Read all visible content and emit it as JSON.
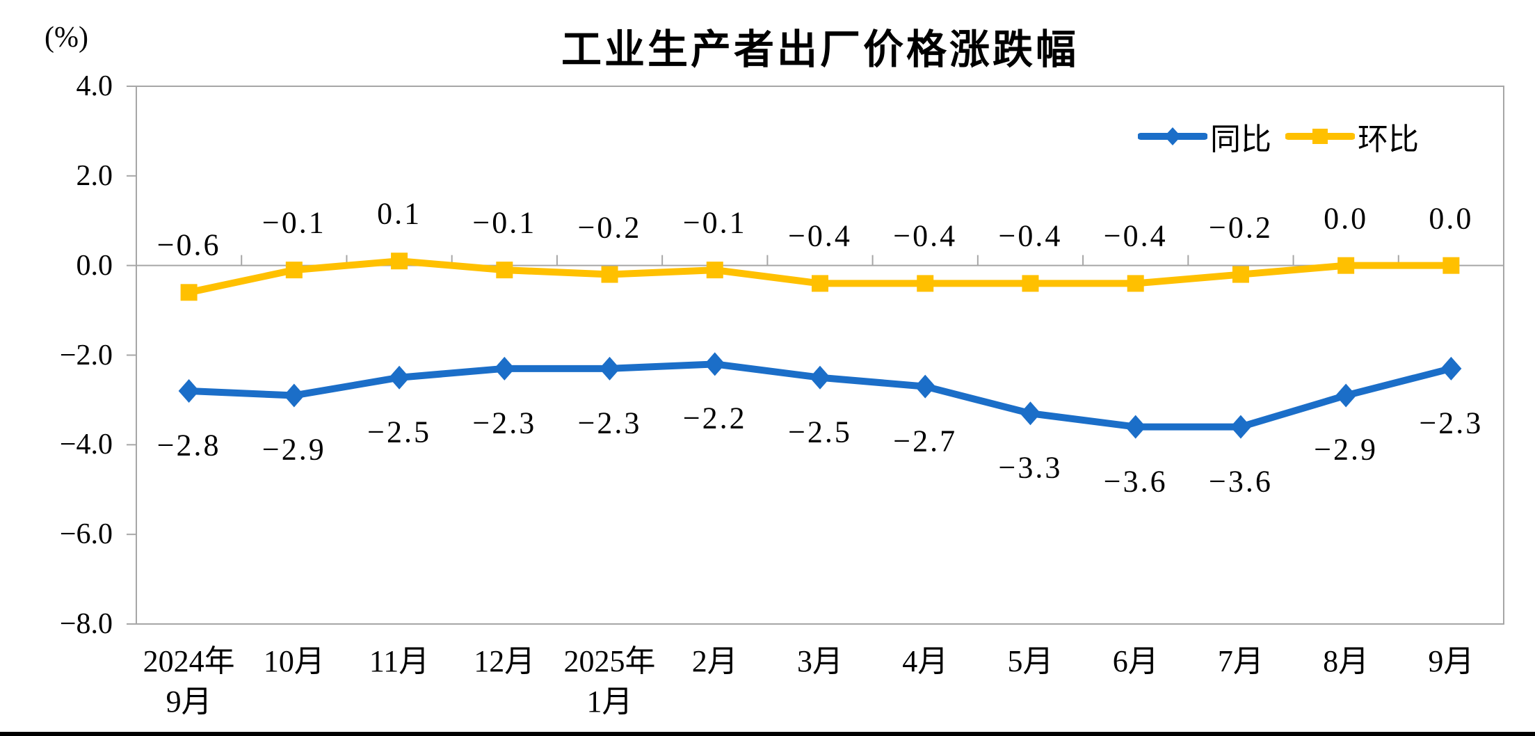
{
  "page": {
    "background": "#FFFFFF",
    "bottom_rule_color": "#000000"
  },
  "chart_data": {
    "type": "line",
    "title": "工业生产者出厂价格涨跌幅",
    "unit_label": "(%)",
    "categories": [
      [
        "2024年",
        "9月"
      ],
      [
        "10月"
      ],
      [
        "11月"
      ],
      [
        "12月"
      ],
      [
        "2025年",
        "1月"
      ],
      [
        "2月"
      ],
      [
        "3月"
      ],
      [
        "4月"
      ],
      [
        "5月"
      ],
      [
        "6月"
      ],
      [
        "7月"
      ],
      [
        "8月"
      ],
      [
        "9月"
      ]
    ],
    "series": [
      {
        "name": "同比",
        "color": "#1B6EC8",
        "marker": "diamond",
        "label_side": "below",
        "values": [
          -2.8,
          -2.9,
          -2.5,
          -2.3,
          -2.3,
          -2.2,
          -2.5,
          -2.7,
          -3.3,
          -3.6,
          -3.6,
          -2.9,
          -2.3
        ],
        "labels": [
          "−2.8",
          "−2.9",
          "−2.5",
          "−2.3",
          "−2.3",
          "−2.2",
          "−2.5",
          "−2.7",
          "−3.3",
          "−3.6",
          "−3.6",
          "−2.9",
          "−2.3"
        ]
      },
      {
        "name": "环比",
        "color": "#FFC000",
        "marker": "square",
        "label_side": "above",
        "values": [
          -0.6,
          -0.1,
          0.1,
          -0.1,
          -0.2,
          -0.1,
          -0.4,
          -0.4,
          -0.4,
          -0.4,
          -0.2,
          0.0,
          0.0
        ],
        "labels": [
          "−0.6",
          "−0.1",
          "0.1",
          "−0.1",
          "−0.2",
          "−0.1",
          "−0.4",
          "−0.4",
          "−0.4",
          "−0.4",
          "−0.2",
          "0.0",
          "0.0"
        ]
      }
    ],
    "y_axis": {
      "min": -8,
      "max": 4,
      "step": 2,
      "tick_labels": [
        "4.0",
        "2.0",
        "0.0",
        "−2.0",
        "−4.0",
        "−6.0",
        "−8.0"
      ]
    },
    "legend": {
      "position": "top-right",
      "entries": [
        "同比",
        "环比"
      ]
    },
    "axis_color": "#A6A6A6",
    "grid": "none",
    "ylim": [
      -8,
      4
    ]
  }
}
